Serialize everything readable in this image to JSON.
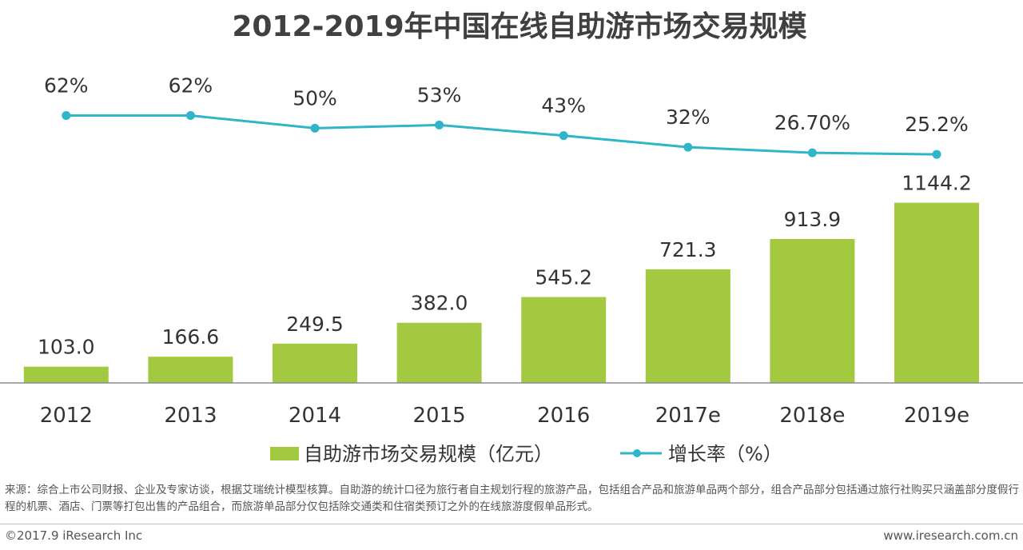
{
  "title": "2012-2019年中国在线自助游市场交易规模",
  "chart_data": {
    "type": "bar",
    "title": "2012-2019年中国在线自助游市场交易规模",
    "categories": [
      "2012",
      "2013",
      "2014",
      "2015",
      "2016",
      "2017e",
      "2018e",
      "2019e"
    ],
    "series": [
      {
        "name": "自助游市场交易规模（亿元）",
        "type": "bar",
        "values": [
          103.0,
          166.6,
          249.5,
          382.0,
          545.2,
          721.3,
          913.9,
          1144.2
        ],
        "labels": [
          "103.0",
          "166.6",
          "249.5",
          "382.0",
          "545.2",
          "721.3",
          "913.9",
          "1144.2"
        ],
        "color": "#a3c940"
      },
      {
        "name": "增长率（%）",
        "type": "line",
        "values": [
          62,
          62,
          50,
          53,
          43,
          32,
          26.7,
          25.2
        ],
        "labels": [
          "62%",
          "62%",
          "50%",
          "53%",
          "43%",
          "32%",
          "26.70%",
          "25.2%"
        ],
        "color": "#2eb5c7"
      }
    ],
    "legend_position": "bottom"
  },
  "source_text": "来源：综合上市公司财报、企业及专家访谈，根据艾瑞统计模型核算。自助游的统计口径为旅行者自主规划行程的旅游产品，包括组合产品和旅游单品两个部分，组合产品部分包括通过旅行社购买只涵盖部分度假行程的机票、酒店、门票等打包出售的产品组合，而旅游单品部分仅包括除交通类和住宿类预订之外的在线旅游度假单品形式。",
  "footer": {
    "copyright": "©2017.9 iResearch Inc",
    "website": "www.iresearch.com.cn"
  }
}
